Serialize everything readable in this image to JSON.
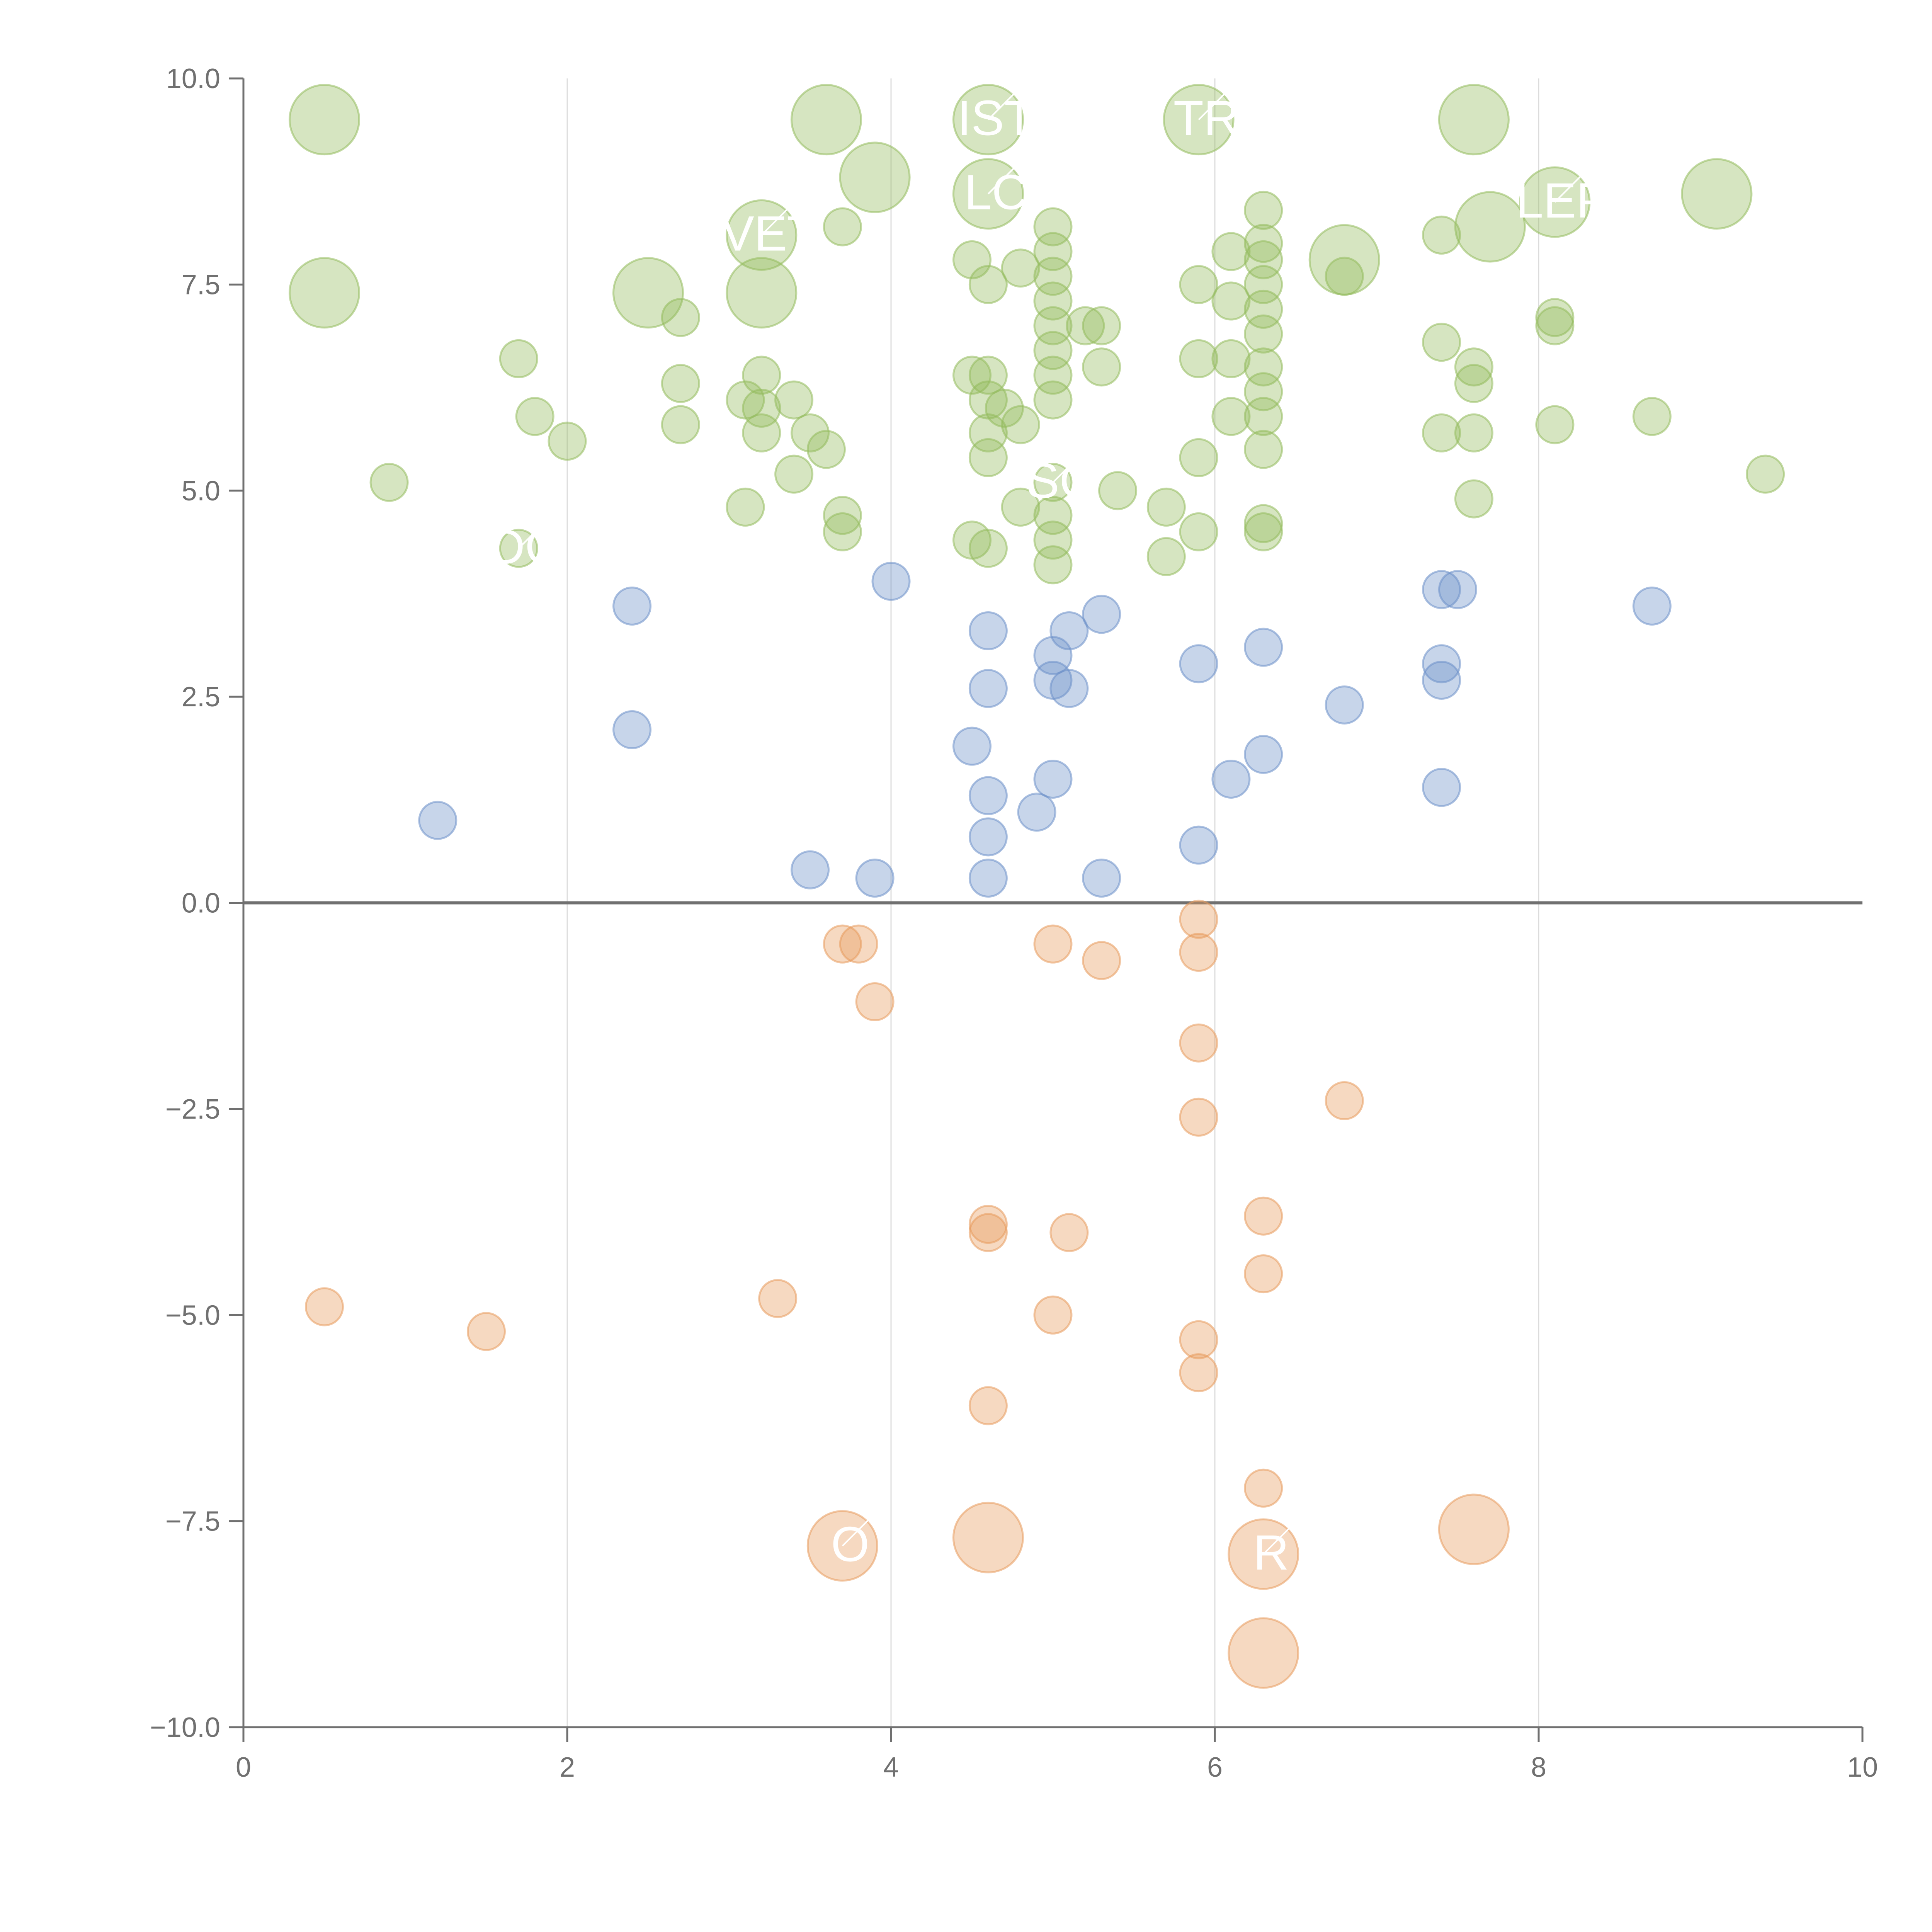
{
  "colors": {
    "green": "#94bb5d",
    "blue": "#6b90c9",
    "orange": "#e79a5c",
    "axis": "#707070",
    "grid": "#dcdcdc",
    "zero_line": "#707070",
    "label": "#ffffff"
  },
  "chart_data": {
    "type": "scatter",
    "xlim": [
      0,
      10
    ],
    "ylim": [
      -10,
      10
    ],
    "x_ticks": [
      0,
      2,
      4,
      6,
      8,
      10
    ],
    "y_ticks": [
      10,
      7.5,
      5,
      2.5,
      0,
      -2.5,
      -5,
      -7.5,
      -10
    ],
    "x_tick_labels": [
      "0",
      "2",
      "4",
      "6",
      "8",
      "10"
    ],
    "y_tick_labels": [
      "10.0",
      "7.5",
      "5.0",
      "2.5",
      "0.0",
      "−2.5",
      "−5.0",
      "−7.5",
      "−10.0"
    ],
    "title": "",
    "xlabel": "",
    "ylabel": "",
    "grid": "vertical at x ticks",
    "series": [
      {
        "name": "green",
        "color": "#94bb5d",
        "points": [
          [
            0.5,
            9.5,
            2
          ],
          [
            3.6,
            9.5,
            2
          ],
          [
            4.6,
            9.5,
            2
          ],
          [
            5.9,
            9.5,
            2
          ],
          [
            7.6,
            9.5,
            2
          ],
          [
            3.9,
            8.8,
            2
          ],
          [
            4.6,
            8.6,
            2
          ],
          [
            8.1,
            8.5,
            2
          ],
          [
            9.1,
            8.6,
            2
          ],
          [
            7.7,
            8.2,
            2
          ],
          [
            3.2,
            8.1,
            2
          ],
          [
            6.8,
            7.8,
            2
          ],
          [
            0.5,
            7.4,
            2
          ],
          [
            2.5,
            7.4,
            2
          ],
          [
            3.2,
            7.4,
            2
          ],
          [
            5.0,
            8.2,
            1
          ],
          [
            5.0,
            7.9,
            1
          ],
          [
            5.0,
            7.6,
            1
          ],
          [
            5.0,
            7.3,
            1
          ],
          [
            5.0,
            7.0,
            1
          ],
          [
            5.0,
            6.7,
            1
          ],
          [
            5.0,
            6.4,
            1
          ],
          [
            5.0,
            6.1,
            1
          ],
          [
            4.5,
            7.8,
            1
          ],
          [
            4.6,
            7.5,
            1
          ],
          [
            4.8,
            7.7,
            1
          ],
          [
            4.6,
            6.4,
            1
          ],
          [
            4.5,
            6.4,
            1
          ],
          [
            4.6,
            6.1,
            1
          ],
          [
            4.7,
            6.0,
            1
          ],
          [
            4.6,
            5.7,
            1
          ],
          [
            4.8,
            5.8,
            1
          ],
          [
            4.6,
            5.4,
            1
          ],
          [
            5.3,
            7.0,
            1
          ],
          [
            5.2,
            7.0,
            1
          ],
          [
            5.3,
            6.5,
            1
          ],
          [
            6.3,
            8.4,
            1
          ],
          [
            6.3,
            8.0,
            1
          ],
          [
            6.3,
            7.8,
            1
          ],
          [
            6.3,
            7.5,
            1
          ],
          [
            6.3,
            7.2,
            1
          ],
          [
            6.3,
            6.9,
            1
          ],
          [
            6.3,
            6.5,
            1
          ],
          [
            6.3,
            6.2,
            1
          ],
          [
            6.3,
            5.9,
            1
          ],
          [
            6.3,
            5.5,
            1
          ],
          [
            6.3,
            4.6,
            1
          ],
          [
            6.3,
            4.5,
            1
          ],
          [
            6.1,
            7.9,
            1
          ],
          [
            5.9,
            7.5,
            1
          ],
          [
            6.1,
            7.3,
            1
          ],
          [
            5.9,
            6.6,
            1
          ],
          [
            6.1,
            6.6,
            1
          ],
          [
            6.1,
            5.9,
            1
          ],
          [
            5.9,
            5.4,
            1
          ],
          [
            5.9,
            4.5,
            1
          ],
          [
            5.7,
            4.8,
            1
          ],
          [
            5.7,
            4.2,
            1
          ],
          [
            5.4,
            5.0,
            1
          ],
          [
            5.0,
            5.1,
            1
          ],
          [
            5.0,
            4.7,
            1
          ],
          [
            5.0,
            4.4,
            1
          ],
          [
            5.0,
            4.1,
            1
          ],
          [
            4.8,
            4.8,
            1
          ],
          [
            4.5,
            4.4,
            1
          ],
          [
            4.6,
            4.3,
            1
          ],
          [
            6.8,
            7.6,
            1
          ],
          [
            7.4,
            8.1,
            1
          ],
          [
            7.4,
            6.8,
            1
          ],
          [
            7.4,
            5.7,
            1
          ],
          [
            7.6,
            6.5,
            1
          ],
          [
            7.6,
            6.3,
            1
          ],
          [
            7.6,
            5.7,
            1
          ],
          [
            7.6,
            4.9,
            1
          ],
          [
            8.1,
            7.1,
            1
          ],
          [
            8.1,
            7.0,
            1
          ],
          [
            8.1,
            5.8,
            1
          ],
          [
            8.7,
            5.9,
            1
          ],
          [
            9.4,
            5.2,
            1
          ],
          [
            3.7,
            8.2,
            1
          ],
          [
            2.7,
            7.1,
            1
          ],
          [
            2.7,
            6.3,
            1
          ],
          [
            2.7,
            5.8,
            1
          ],
          [
            3.2,
            6.4,
            1
          ],
          [
            3.1,
            6.1,
            1
          ],
          [
            3.2,
            6.0,
            1
          ],
          [
            3.4,
            6.1,
            1
          ],
          [
            3.2,
            5.7,
            1
          ],
          [
            3.5,
            5.7,
            1
          ],
          [
            3.6,
            5.5,
            1
          ],
          [
            3.4,
            5.2,
            1
          ],
          [
            3.1,
            4.8,
            1
          ],
          [
            3.7,
            4.7,
            1
          ],
          [
            3.7,
            4.5,
            1
          ],
          [
            1.7,
            6.6,
            1
          ],
          [
            1.8,
            5.9,
            1
          ],
          [
            2.0,
            5.6,
            1
          ],
          [
            0.9,
            5.1,
            1
          ],
          [
            1.7,
            4.3,
            1
          ]
        ]
      },
      {
        "name": "blue",
        "color": "#6b90c9",
        "points": [
          [
            4.0,
            3.9,
            1
          ],
          [
            2.4,
            3.6,
            1
          ],
          [
            4.6,
            3.3,
            1
          ],
          [
            5.1,
            3.3,
            1
          ],
          [
            5.3,
            3.5,
            1
          ],
          [
            5.0,
            3.0,
            1
          ],
          [
            5.0,
            2.7,
            1
          ],
          [
            5.1,
            2.6,
            1
          ],
          [
            4.6,
            2.6,
            1
          ],
          [
            5.9,
            2.9,
            1
          ],
          [
            6.3,
            3.1,
            1
          ],
          [
            7.4,
            3.8,
            1
          ],
          [
            7.5,
            3.8,
            1
          ],
          [
            7.4,
            2.9,
            1
          ],
          [
            7.4,
            2.7,
            1
          ],
          [
            8.7,
            3.6,
            1
          ],
          [
            6.8,
            2.4,
            1
          ],
          [
            2.4,
            2.1,
            1
          ],
          [
            4.5,
            1.9,
            1
          ],
          [
            6.3,
            1.8,
            1
          ],
          [
            5.0,
            1.5,
            1
          ],
          [
            6.1,
            1.5,
            1
          ],
          [
            7.4,
            1.4,
            1
          ],
          [
            4.6,
            1.3,
            1
          ],
          [
            4.9,
            1.1,
            1
          ],
          [
            1.2,
            1.0,
            1
          ],
          [
            4.6,
            0.8,
            1
          ],
          [
            5.9,
            0.7,
            1
          ],
          [
            3.5,
            0.4,
            1
          ],
          [
            3.9,
            0.3,
            1
          ],
          [
            4.6,
            0.3,
            1
          ],
          [
            5.3,
            0.3,
            1
          ]
        ]
      },
      {
        "name": "orange",
        "color": "#e79a5c",
        "points": [
          [
            5.9,
            -0.2,
            1
          ],
          [
            5.9,
            -0.6,
            1
          ],
          [
            3.7,
            -0.5,
            1
          ],
          [
            3.8,
            -0.5,
            1
          ],
          [
            5.0,
            -0.5,
            1
          ],
          [
            5.3,
            -0.7,
            1
          ],
          [
            3.9,
            -1.2,
            1
          ],
          [
            5.9,
            -1.7,
            1
          ],
          [
            6.8,
            -2.4,
            1
          ],
          [
            5.9,
            -2.6,
            1
          ],
          [
            6.3,
            -3.8,
            1
          ],
          [
            4.6,
            -3.9,
            1
          ],
          [
            4.6,
            -4.0,
            1
          ],
          [
            5.1,
            -4.0,
            1
          ],
          [
            6.3,
            -4.5,
            1
          ],
          [
            3.3,
            -4.8,
            1
          ],
          [
            0.5,
            -4.9,
            1
          ],
          [
            1.5,
            -5.2,
            1
          ],
          [
            5.0,
            -5.0,
            1
          ],
          [
            5.9,
            -5.3,
            1
          ],
          [
            5.9,
            -5.7,
            1
          ],
          [
            4.6,
            -6.1,
            1
          ],
          [
            6.3,
            -7.1,
            1
          ],
          [
            3.7,
            -7.8,
            2
          ],
          [
            4.6,
            -7.7,
            2
          ],
          [
            6.3,
            -7.9,
            2
          ],
          [
            7.6,
            -7.6,
            2
          ],
          [
            6.3,
            -9.1,
            2
          ]
        ]
      }
    ],
    "annotations": [
      {
        "text": "IST",
        "x": 4.6,
        "y": 9.5
      },
      {
        "text": "LC",
        "x": 4.6,
        "y": 8.6
      },
      {
        "text": "TR",
        "x": 5.9,
        "y": 9.5
      },
      {
        "text": "LEP",
        "x": 8.1,
        "y": 8.5
      },
      {
        "text": "VET",
        "x": 3.2,
        "y": 8.1
      },
      {
        "text": "SC",
        "x": 5.0,
        "y": 5.1
      },
      {
        "text": "DO",
        "x": 1.7,
        "y": 4.3
      },
      {
        "text": "O",
        "x": 3.7,
        "y": -7.8
      },
      {
        "text": "R",
        "x": 6.3,
        "y": -7.9
      }
    ]
  }
}
